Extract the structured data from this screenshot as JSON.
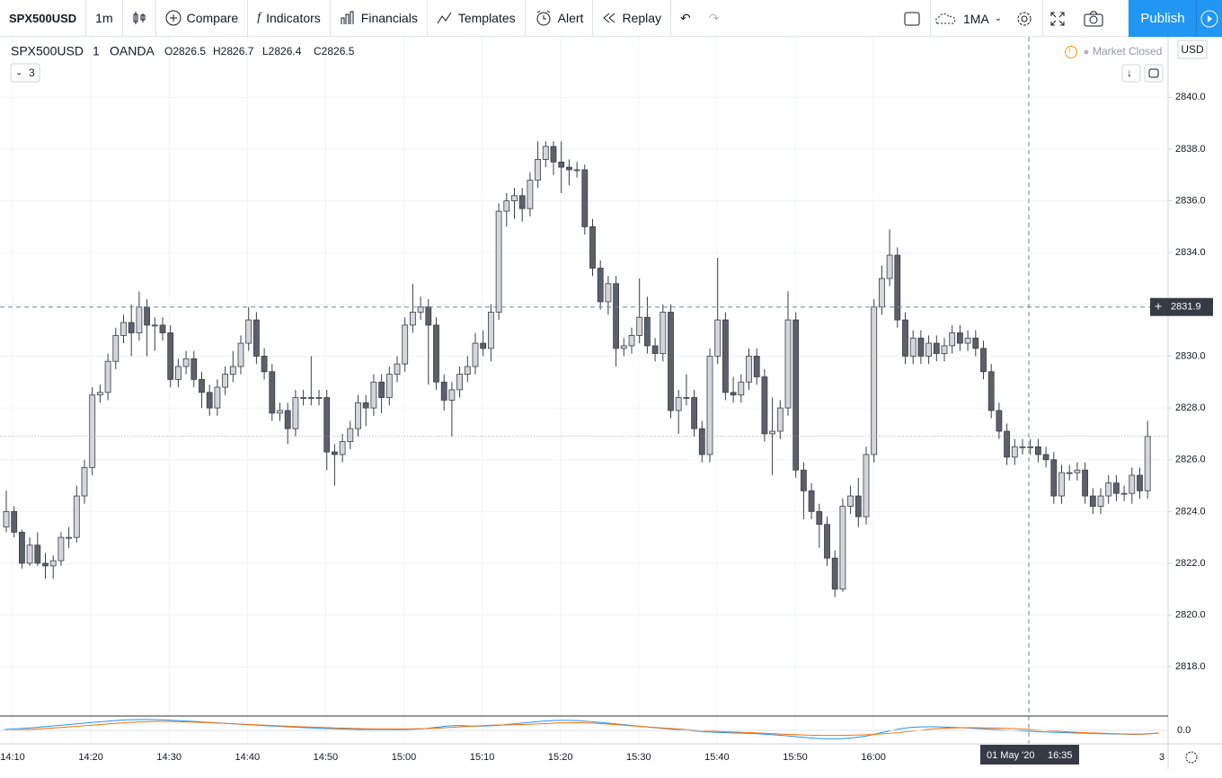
{
  "toolbar": {
    "symbol": "SPX500USD",
    "interval": "1m",
    "compare": "Compare",
    "indicators": "Indicators",
    "financials": "Financials",
    "templates": "Templates",
    "alert": "Alert",
    "replay": "Replay",
    "study": "1MA",
    "publish": "Publish"
  },
  "legend": {
    "symbol": "SPX500USD",
    "interval": "1",
    "exchange": "OANDA",
    "open": "O2826.5",
    "high": "H2826.7",
    "low": "L2826.4",
    "close": "C2826.5",
    "studies": "3",
    "status": "Market Closed",
    "currency": "USD"
  },
  "chart_data": {
    "type": "candlestick",
    "up_color": "#d4d6dc",
    "down_color": "#5d606b",
    "outline_color": "#3b3d45",
    "ylim": [
      2816.1,
      2842.3
    ],
    "yticks": [
      {
        "value": 2818,
        "label": "2818.0"
      },
      {
        "value": 2820,
        "label": "2820.0"
      },
      {
        "value": 2822,
        "label": "2822.0"
      },
      {
        "value": 2824,
        "label": "2824.0"
      },
      {
        "value": 2826,
        "label": "2826.0"
      },
      {
        "value": 2828,
        "label": "2828.0"
      },
      {
        "value": 2830,
        "label": "2830.0"
      },
      {
        "value": 2832,
        "label": "2832.0"
      },
      {
        "value": 2834,
        "label": "2834.0"
      },
      {
        "value": 2836,
        "label": "2836.0"
      },
      {
        "value": 2838,
        "label": "2838.0"
      },
      {
        "value": 2840,
        "label": "2840.0"
      }
    ],
    "time_labels": [
      "14:10",
      "14:20",
      "14:30",
      "14:40",
      "14:50",
      "15:00",
      "15:10",
      "15:20",
      "15:30",
      "15:40",
      "15:50",
      "16:00"
    ],
    "end_label": "3",
    "crosshair_price": 2831.9,
    "crosshair_date": "01 May '20",
    "crosshair_time": "16:35",
    "pane2_label": "0.0",
    "grid": true,
    "candles": [
      [
        2823.4,
        2824.8,
        2823.2,
        2824.0
      ],
      [
        2824.0,
        2824.2,
        2823.0,
        2823.2
      ],
      [
        2823.2,
        2823.3,
        2821.8,
        2822.0
      ],
      [
        2822.0,
        2823.0,
        2821.9,
        2822.7
      ],
      [
        2822.7,
        2823.2,
        2821.9,
        2822.0
      ],
      [
        2822.0,
        2822.4,
        2821.4,
        2821.9
      ],
      [
        2821.9,
        2822.3,
        2821.4,
        2822.1
      ],
      [
        2822.1,
        2823.2,
        2821.9,
        2823.0
      ],
      [
        2823.0,
        2823.4,
        2822.6,
        2823.0
      ],
      [
        2823.0,
        2825.0,
        2822.8,
        2824.6
      ],
      [
        2824.6,
        2826.0,
        2824.3,
        2825.7
      ],
      [
        2825.7,
        2828.8,
        2825.4,
        2828.5
      ],
      [
        2828.5,
        2828.9,
        2828.2,
        2828.6
      ],
      [
        2828.6,
        2830.1,
        2828.3,
        2829.8
      ],
      [
        2829.8,
        2831.1,
        2829.5,
        2830.8
      ],
      [
        2830.8,
        2831.6,
        2830.5,
        2831.3
      ],
      [
        2831.3,
        2832.0,
        2830.0,
        2830.9
      ],
      [
        2830.9,
        2832.5,
        2830.6,
        2831.9
      ],
      [
        2831.9,
        2832.2,
        2830.0,
        2831.2
      ],
      [
        2831.2,
        2831.5,
        2830.2,
        2831.2
      ],
      [
        2831.2,
        2831.5,
        2830.6,
        2830.9
      ],
      [
        2830.9,
        2831.2,
        2828.8,
        2829.1
      ],
      [
        2829.1,
        2829.9,
        2828.8,
        2829.6
      ],
      [
        2829.6,
        2830.2,
        2829.3,
        2829.9
      ],
      [
        2829.9,
        2830.2,
        2828.8,
        2829.1
      ],
      [
        2829.1,
        2829.4,
        2828.0,
        2828.6
      ],
      [
        2828.6,
        2828.9,
        2827.7,
        2828.0
      ],
      [
        2828.0,
        2829.1,
        2827.7,
        2828.8
      ],
      [
        2828.8,
        2829.6,
        2828.5,
        2829.3
      ],
      [
        2829.3,
        2830.2,
        2829.0,
        2829.6
      ],
      [
        2829.6,
        2830.8,
        2829.3,
        2830.5
      ],
      [
        2830.5,
        2831.9,
        2830.2,
        2831.4
      ],
      [
        2831.4,
        2831.7,
        2829.7,
        2830.0
      ],
      [
        2830.0,
        2830.3,
        2829.1,
        2829.4
      ],
      [
        2829.4,
        2829.7,
        2827.5,
        2827.8
      ],
      [
        2827.8,
        2828.2,
        2827.5,
        2827.9
      ],
      [
        2827.9,
        2828.2,
        2826.6,
        2827.2
      ],
      [
        2827.2,
        2828.7,
        2826.9,
        2828.4
      ],
      [
        2828.4,
        2828.7,
        2828.1,
        2828.4
      ],
      [
        2828.4,
        2830.0,
        2828.1,
        2828.4
      ],
      [
        2828.4,
        2828.7,
        2828.1,
        2828.4
      ],
      [
        2828.4,
        2828.7,
        2825.6,
        2826.3
      ],
      [
        2826.3,
        2826.6,
        2825.0,
        2826.2
      ],
      [
        2826.2,
        2827.0,
        2825.9,
        2826.7
      ],
      [
        2826.7,
        2827.5,
        2826.4,
        2827.2
      ],
      [
        2827.2,
        2828.5,
        2826.9,
        2828.2
      ],
      [
        2828.2,
        2828.5,
        2827.3,
        2828.0
      ],
      [
        2828.0,
        2829.3,
        2827.7,
        2829.0
      ],
      [
        2829.0,
        2829.3,
        2827.8,
        2828.4
      ],
      [
        2828.4,
        2829.6,
        2828.1,
        2829.3
      ],
      [
        2829.3,
        2830.0,
        2829.0,
        2829.7
      ],
      [
        2829.7,
        2831.5,
        2829.4,
        2831.2
      ],
      [
        2831.2,
        2832.8,
        2830.9,
        2831.7
      ],
      [
        2831.7,
        2832.3,
        2831.4,
        2831.9
      ],
      [
        2831.9,
        2832.2,
        2828.9,
        2831.2
      ],
      [
        2831.2,
        2831.5,
        2828.7,
        2829.0
      ],
      [
        2829.0,
        2829.3,
        2827.9,
        2828.3
      ],
      [
        2828.3,
        2829.0,
        2826.9,
        2828.7
      ],
      [
        2828.7,
        2829.6,
        2828.4,
        2829.3
      ],
      [
        2829.3,
        2830.0,
        2829.0,
        2829.6
      ],
      [
        2829.6,
        2830.9,
        2829.3,
        2830.5
      ],
      [
        2830.5,
        2831.0,
        2830.0,
        2830.3
      ],
      [
        2830.3,
        2832.0,
        2829.8,
        2831.7
      ],
      [
        2831.7,
        2835.9,
        2831.4,
        2835.6
      ],
      [
        2835.6,
        2836.3,
        2835.0,
        2836.0
      ],
      [
        2836.0,
        2836.5,
        2835.3,
        2836.2
      ],
      [
        2836.2,
        2836.5,
        2835.2,
        2835.7
      ],
      [
        2835.7,
        2837.1,
        2835.4,
        2836.8
      ],
      [
        2836.8,
        2838.3,
        2836.5,
        2837.6
      ],
      [
        2837.6,
        2838.3,
        2837.3,
        2838.1
      ],
      [
        2838.1,
        2838.3,
        2837.0,
        2837.5
      ],
      [
        2837.5,
        2838.3,
        2836.3,
        2837.3
      ],
      [
        2837.3,
        2837.6,
        2836.6,
        2837.2
      ],
      [
        2837.2,
        2837.5,
        2836.9,
        2837.2
      ],
      [
        2837.2,
        2837.4,
        2834.7,
        2835.0
      ],
      [
        2835.0,
        2835.3,
        2833.1,
        2833.4
      ],
      [
        2833.4,
        2833.7,
        2831.8,
        2832.1
      ],
      [
        2832.1,
        2833.1,
        2831.6,
        2832.8
      ],
      [
        2832.8,
        2833.1,
        2829.6,
        2830.3
      ],
      [
        2830.3,
        2830.7,
        2830.0,
        2830.4
      ],
      [
        2830.4,
        2831.1,
        2830.1,
        2830.8
      ],
      [
        2830.8,
        2833.0,
        2830.5,
        2831.5
      ],
      [
        2831.5,
        2832.3,
        2830.1,
        2830.4
      ],
      [
        2830.4,
        2830.7,
        2829.8,
        2830.1
      ],
      [
        2830.1,
        2832.0,
        2829.8,
        2831.7
      ],
      [
        2831.7,
        2832.0,
        2827.6,
        2827.9
      ],
      [
        2827.9,
        2828.7,
        2827.0,
        2828.4
      ],
      [
        2828.4,
        2829.3,
        2828.1,
        2828.4
      ],
      [
        2828.4,
        2828.7,
        2826.9,
        2827.2
      ],
      [
        2827.2,
        2827.5,
        2825.9,
        2826.2
      ],
      [
        2826.2,
        2830.3,
        2825.9,
        2830.0
      ],
      [
        2830.0,
        2833.8,
        2829.7,
        2831.4
      ],
      [
        2831.4,
        2831.7,
        2828.3,
        2828.6
      ],
      [
        2828.6,
        2829.2,
        2828.2,
        2828.5
      ],
      [
        2828.5,
        2829.3,
        2828.2,
        2829.0
      ],
      [
        2829.0,
        2830.3,
        2828.7,
        2830.0
      ],
      [
        2830.0,
        2830.3,
        2828.9,
        2829.2
      ],
      [
        2829.2,
        2829.5,
        2826.7,
        2827.0
      ],
      [
        2827.0,
        2828.4,
        2825.4,
        2827.1
      ],
      [
        2827.1,
        2828.3,
        2826.8,
        2828.0
      ],
      [
        2828.0,
        2832.5,
        2827.7,
        2831.4
      ],
      [
        2831.4,
        2831.7,
        2825.3,
        2825.6
      ],
      [
        2825.6,
        2825.9,
        2823.7,
        2824.8
      ],
      [
        2824.8,
        2825.1,
        2823.7,
        2824.0
      ],
      [
        2824.0,
        2824.3,
        2822.6,
        2823.5
      ],
      [
        2823.5,
        2823.8,
        2821.9,
        2822.2
      ],
      [
        2822.2,
        2822.5,
        2820.7,
        2821.0
      ],
      [
        2821.0,
        2824.5,
        2820.9,
        2824.2
      ],
      [
        2824.2,
        2825.0,
        2823.9,
        2824.6
      ],
      [
        2824.6,
        2825.3,
        2823.4,
        2823.8
      ],
      [
        2823.8,
        2826.5,
        2823.5,
        2826.2
      ],
      [
        2826.2,
        2832.2,
        2825.9,
        2831.9
      ],
      [
        2831.9,
        2833.5,
        2831.6,
        2833.0
      ],
      [
        2833.0,
        2834.9,
        2832.7,
        2833.9
      ],
      [
        2833.9,
        2834.2,
        2831.1,
        2831.4
      ],
      [
        2831.4,
        2831.7,
        2829.7,
        2830.0
      ],
      [
        2830.0,
        2831.0,
        2829.7,
        2830.7
      ],
      [
        2830.7,
        2831.0,
        2829.7,
        2830.0
      ],
      [
        2830.0,
        2830.8,
        2829.7,
        2830.5
      ],
      [
        2830.5,
        2830.8,
        2829.8,
        2830.1
      ],
      [
        2830.1,
        2830.7,
        2829.8,
        2830.4
      ],
      [
        2830.4,
        2831.2,
        2830.1,
        2830.9
      ],
      [
        2830.9,
        2831.2,
        2830.2,
        2830.5
      ],
      [
        2830.5,
        2831.0,
        2830.2,
        2830.7
      ],
      [
        2830.7,
        2831.0,
        2830.0,
        2830.3
      ],
      [
        2830.3,
        2830.6,
        2829.1,
        2829.4
      ],
      [
        2829.4,
        2829.7,
        2827.6,
        2827.9
      ],
      [
        2827.9,
        2828.2,
        2826.8,
        2827.1
      ],
      [
        2827.1,
        2827.4,
        2825.8,
        2826.1
      ],
      [
        2826.1,
        2826.8,
        2825.8,
        2826.5
      ],
      [
        2826.5,
        2826.8,
        2826.2,
        2826.5
      ],
      [
        2826.5,
        2826.8,
        2826.2,
        2826.5
      ],
      [
        2826.5,
        2826.8,
        2825.9,
        2826.2
      ],
      [
        2826.2,
        2826.5,
        2825.7,
        2826.0
      ],
      [
        2826.0,
        2826.3,
        2824.3,
        2824.6
      ],
      [
        2824.6,
        2825.8,
        2824.3,
        2825.5
      ],
      [
        2825.5,
        2825.8,
        2825.2,
        2825.5
      ],
      [
        2825.5,
        2825.9,
        2825.2,
        2825.6
      ],
      [
        2825.6,
        2825.9,
        2824.3,
        2824.6
      ],
      [
        2824.6,
        2824.9,
        2823.9,
        2824.2
      ],
      [
        2824.2,
        2824.9,
        2823.9,
        2824.6
      ],
      [
        2824.6,
        2825.4,
        2824.3,
        2825.1
      ],
      [
        2825.1,
        2825.4,
        2824.4,
        2824.7
      ],
      [
        2824.7,
        2825.0,
        2824.4,
        2824.7
      ],
      [
        2824.7,
        2825.7,
        2824.3,
        2825.4
      ],
      [
        2825.4,
        2825.7,
        2824.5,
        2824.8
      ],
      [
        2824.8,
        2827.5,
        2824.5,
        2826.9
      ]
    ]
  }
}
